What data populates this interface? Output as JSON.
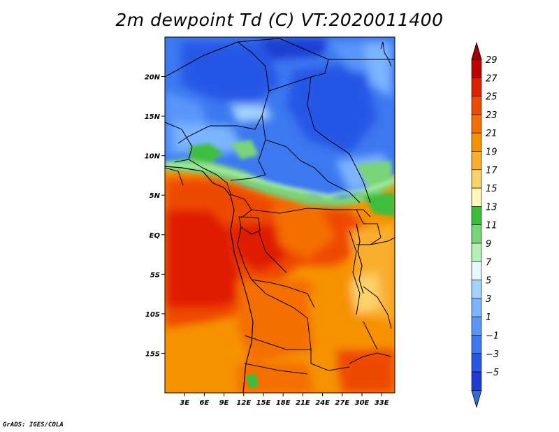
{
  "title": "2m dewpoint Td (C) VT:2020011400",
  "credit": "GrADS: IGES/COLA",
  "map": {
    "lat_labels": [
      "20N",
      "15N",
      "10N",
      "5N",
      "EQ",
      "5S",
      "10S",
      "15S"
    ],
    "lat_values": [
      20,
      15,
      10,
      5,
      0,
      -5,
      -10,
      -15
    ],
    "lon_labels": [
      "3E",
      "6E",
      "9E",
      "12E",
      "15E",
      "18E",
      "21E",
      "24E",
      "27E",
      "30E",
      "33E"
    ],
    "lon_values": [
      3,
      6,
      9,
      12,
      15,
      18,
      21,
      24,
      27,
      30,
      33
    ],
    "lon_range": [
      0,
      35
    ],
    "lat_range": [
      -20,
      25
    ]
  },
  "colorbar": {
    "labels": [
      "29",
      "27",
      "25",
      "23",
      "21",
      "19",
      "17",
      "15",
      "13",
      "11",
      "9",
      "7",
      "5",
      "3",
      "1",
      "−1",
      "−3",
      "−5"
    ],
    "colors": [
      "#a00000",
      "#c00000",
      "#e01e00",
      "#ee4a00",
      "#f46e00",
      "#f69200",
      "#f9ae2e",
      "#fcd26a",
      "#fff8b8",
      "#3cbe3c",
      "#78d678",
      "#b4f0b4",
      "#e4faff",
      "#a4d2ff",
      "#7cb4ff",
      "#5896fa",
      "#3c78f0",
      "#2856e6",
      "#1e3cd2",
      "#2d6edc"
    ]
  }
}
